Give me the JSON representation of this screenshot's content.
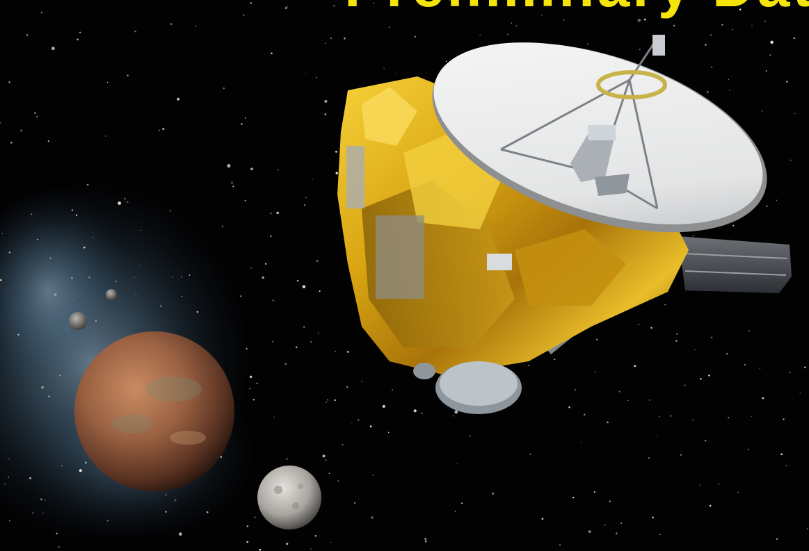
{
  "headline": {
    "text": "Preliminary Data",
    "color": "#f5e40a"
  },
  "scene": {
    "subject": "spacecraft-flyby-artwork",
    "background_color": "#020203",
    "nebula_color": "#5c7c94",
    "spacecraft_foil_color": "#d9a512",
    "dish_color": "#ecedee",
    "planet_color": "#9a6142",
    "moon_color": "#bcbab6"
  }
}
